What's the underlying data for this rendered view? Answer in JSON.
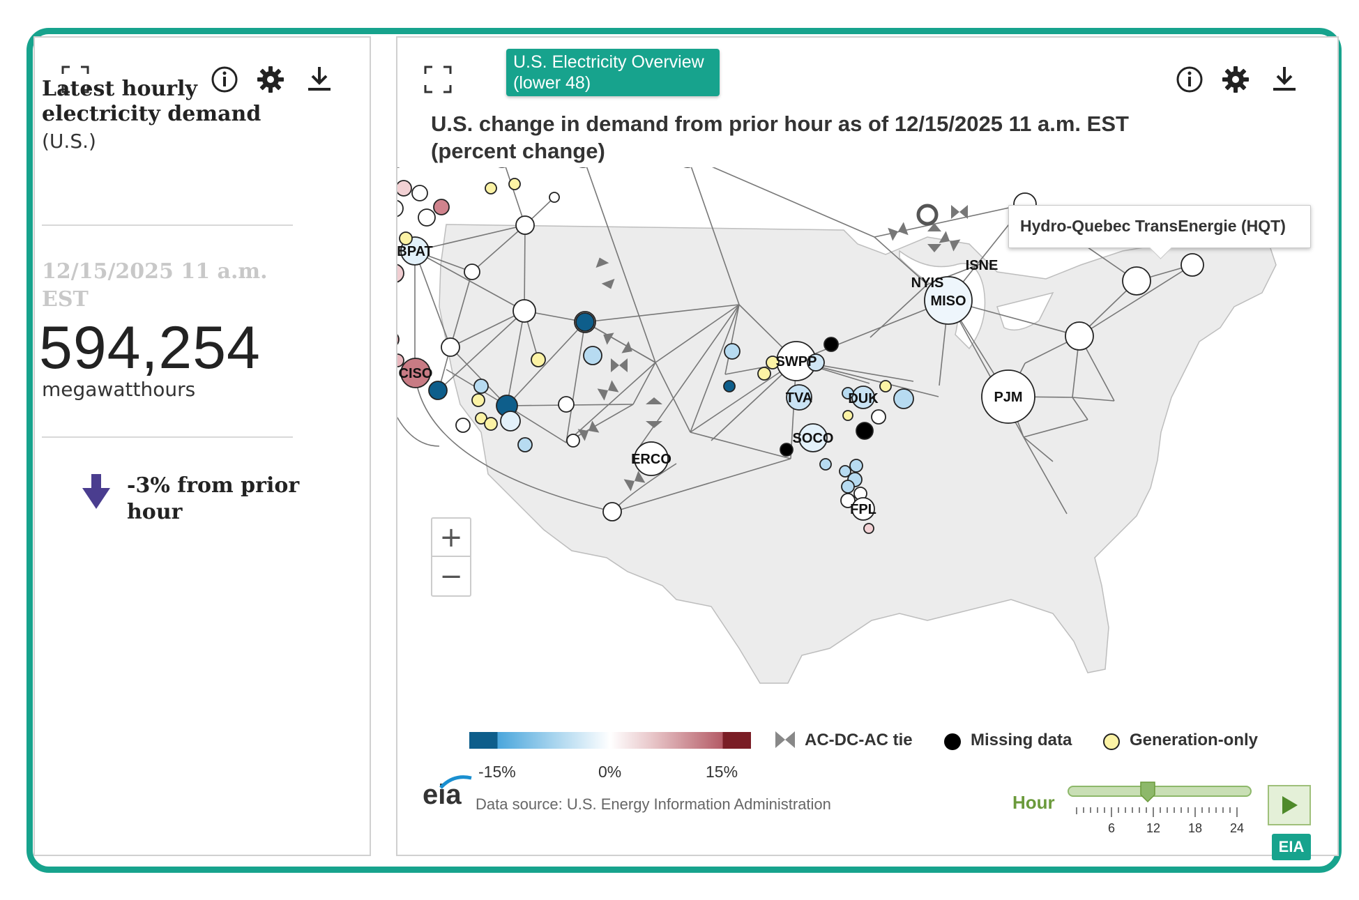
{
  "left_panel": {
    "title": "Latest hourly electricity demand",
    "subtitle": "(U.S.)",
    "date": "12/15/2025 11 a.m. EST",
    "value": "594,254",
    "unit": "megawatthours",
    "change": "-3% from prior hour",
    "change_color": "#4a3d8f"
  },
  "right_panel": {
    "tab_label": "U.S. Electricity Overview (lower 48)",
    "title": "U.S. change in demand from prior hour as of 12/15/2025 11 a.m. EST (percent change)",
    "tooltip": "Hydro-Quebec TransEnergie (HQT)",
    "zoom_in": "+",
    "zoom_out": "−",
    "legend": {
      "ticks": [
        "-15%",
        "0%",
        "15%"
      ],
      "ac_dc": "AC-DC-AC tie",
      "missing": "Missing data",
      "generation_only": "Generation-only"
    },
    "source": "Data source: U.S. Energy Information Administration",
    "logo": "eia",
    "hour_label": "Hour",
    "hour_ticks": [
      "6",
      "12",
      "18",
      "24"
    ],
    "hour_value": 11,
    "badge": "EIA"
  },
  "icons": [
    "expand-icon",
    "info-icon",
    "gear-icon",
    "download-icon",
    "play-icon",
    "arrow-down-icon"
  ],
  "colors": {
    "accent": "#17a38d",
    "missing": "#000000",
    "generation_only": "#fcf3a5",
    "slider": "#8db86a"
  },
  "regions": [
    "BPAT",
    "CISO",
    "SWPP",
    "MISO",
    "PJM",
    "NYIS",
    "ISNE",
    "TVA",
    "DUK",
    "SOCO",
    "ERCO",
    "FPL"
  ]
}
